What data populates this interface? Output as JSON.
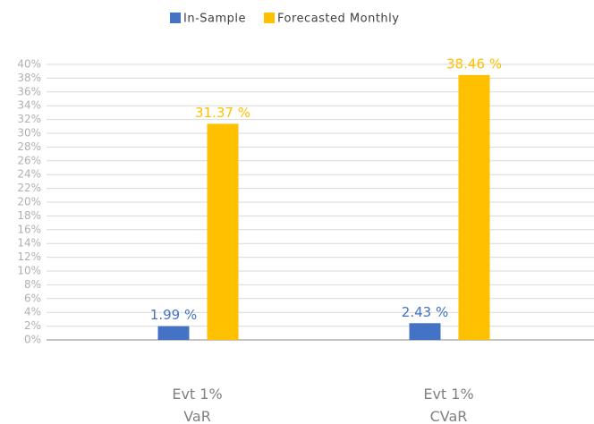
{
  "chart_data": {
    "type": "bar",
    "categories": [
      "Evt 1% VaR",
      "Evt 1% CVaR"
    ],
    "series": [
      {
        "name": "In-Sample",
        "color": "#4472c4",
        "values": [
          1.99,
          2.43
        ],
        "value_labels": [
          "1.99 %",
          "2.43 %"
        ]
      },
      {
        "name": "Forecasted Monthly",
        "color": "#ffc000",
        "values": [
          31.37,
          38.46
        ],
        "value_labels": [
          "31.37 %",
          "38.46 %"
        ]
      }
    ],
    "ylim": [
      0,
      40
    ],
    "yticks": [
      {
        "value": 0,
        "label": "0%"
      },
      {
        "value": 2,
        "label": "2%"
      },
      {
        "value": 4,
        "label": "4%"
      },
      {
        "value": 6,
        "label": "6%"
      },
      {
        "value": 8,
        "label": "8%"
      },
      {
        "value": 10,
        "label": "10%"
      },
      {
        "value": 12,
        "label": "12%"
      },
      {
        "value": 14,
        "label": "14%"
      },
      {
        "value": 16,
        "label": "16%"
      },
      {
        "value": 18,
        "label": "18%"
      },
      {
        "value": 20,
        "label": "20%"
      },
      {
        "value": 22,
        "label": "22%"
      },
      {
        "value": 24,
        "label": "24%"
      },
      {
        "value": 26,
        "label": "26%"
      },
      {
        "value": 28,
        "label": "28%"
      },
      {
        "value": 30,
        "label": "30%"
      },
      {
        "value": 32,
        "label": "32%"
      },
      {
        "value": 34,
        "label": "34%"
      },
      {
        "value": 36,
        "label": "36%"
      },
      {
        "value": 38,
        "label": "38%"
      },
      {
        "value": 40,
        "label": "40%"
      }
    ],
    "grid": true,
    "legend": "top"
  }
}
